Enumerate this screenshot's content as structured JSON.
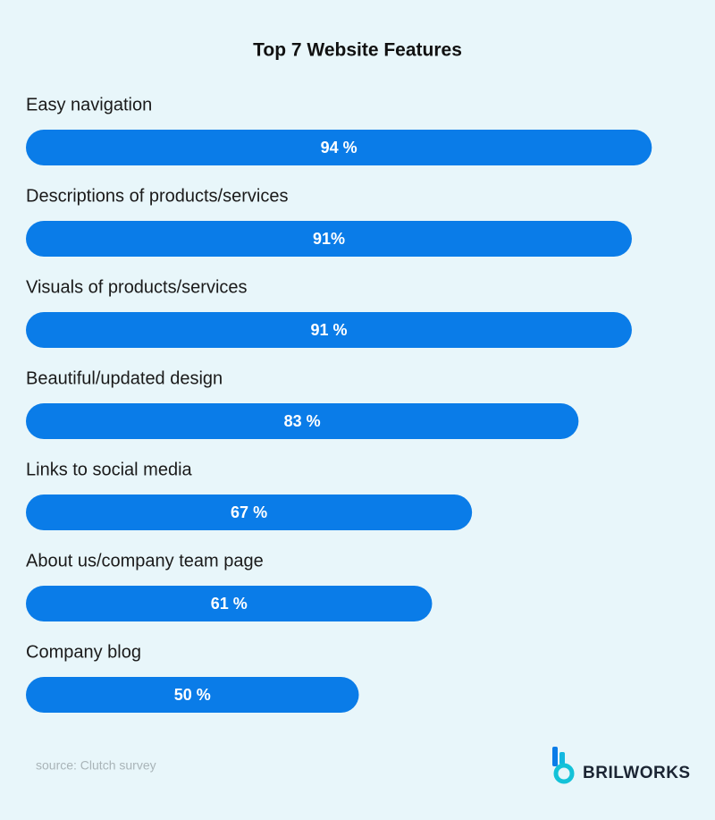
{
  "chart_data": {
    "type": "bar",
    "orientation": "horizontal",
    "title": "Top 7 Website Features",
    "categories": [
      "Easy navigation",
      "Descriptions of products/services",
      "Visuals of products/services",
      "Beautiful/updated design",
      "Links to social media",
      "About us/company team page",
      "Company blog"
    ],
    "values": [
      94,
      91,
      91,
      83,
      67,
      61,
      50
    ],
    "value_labels": [
      "94 %",
      "91%",
      "91 %",
      "83 %",
      "67 %",
      "61 %",
      "50 %"
    ],
    "color": "#0a7ce8",
    "source": "source: Clutch survey"
  },
  "brand": "BRILWORKS"
}
